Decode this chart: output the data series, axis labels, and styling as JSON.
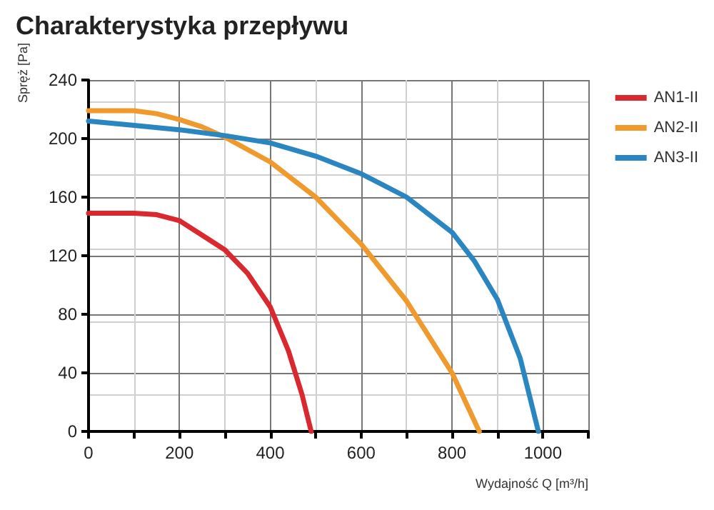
{
  "chart_data": {
    "type": "line",
    "title": "Charakterystyka przepływu",
    "xlabel": "Wydajność Q [m³/h]",
    "ylabel": "Spręż [Pa]",
    "xlim": [
      0,
      1100
    ],
    "xticks": [
      0,
      {
        "value": 100,
        "label": null
      },
      200,
      {
        "value": 300,
        "label": null
      },
      400,
      {
        "value": 500,
        "label": null
      },
      600,
      {
        "value": 700,
        "label": null
      },
      800,
      {
        "value": 900,
        "label": null
      },
      1000,
      {
        "value": 1100,
        "label": null
      }
    ],
    "ylim": [
      0,
      240
    ],
    "yticks": [
      0,
      40,
      80,
      120,
      160,
      200,
      240
    ],
    "grid": true,
    "legend": "top right",
    "marker": "none",
    "line_style": "solid",
    "series": [
      {
        "name": "AN1-II",
        "color": "#d9282e",
        "x": [
          0,
          50,
          100,
          150,
          200,
          250,
          300,
          350,
          400,
          440,
          470,
          490
        ],
        "values": [
          149,
          149,
          149,
          148,
          144,
          134,
          124,
          108,
          85,
          55,
          25,
          0
        ]
      },
      {
        "name": "AN2-II",
        "color": "#f09a2e",
        "x": [
          0,
          100,
          150,
          200,
          250,
          300,
          400,
          500,
          600,
          700,
          800,
          860
        ],
        "values": [
          219,
          219,
          217,
          213,
          208,
          201,
          184,
          160,
          128,
          89,
          40,
          0
        ]
      },
      {
        "name": "AN3-II",
        "color": "#2a86c0",
        "x": [
          0,
          100,
          200,
          300,
          400,
          500,
          600,
          700,
          800,
          850,
          900,
          950,
          990
        ],
        "values": [
          212,
          209,
          206,
          202,
          197,
          188,
          176,
          160,
          136,
          116,
          90,
          50,
          0
        ]
      }
    ]
  }
}
